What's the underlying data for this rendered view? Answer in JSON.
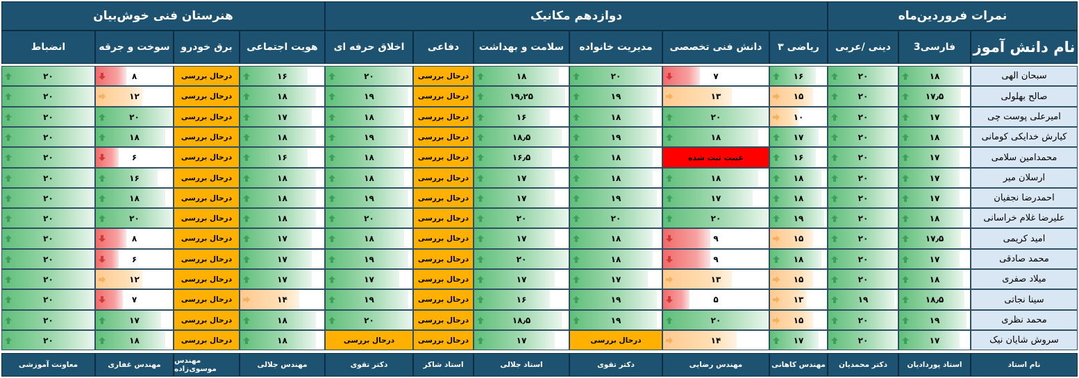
{
  "group_headers": {
    "g1": "نمرات فروردین‌ماه",
    "g2": "دوازدهم مکانیک",
    "g3": "هنرستان فنی خوش‌بیان"
  },
  "columns": [
    {
      "key": "name",
      "label": "نام دانش آموز"
    },
    {
      "key": "farsi",
      "label": "فارسی3"
    },
    {
      "key": "dini",
      "label": "دینی /عربی"
    },
    {
      "key": "riazi",
      "label": "ریاضی ۳"
    },
    {
      "key": "danesh",
      "label": "دانش فنی تخصصی"
    },
    {
      "key": "modiriat",
      "label": "مدیریت خانواده"
    },
    {
      "key": "salamat",
      "label": "سلامت و بهداشت"
    },
    {
      "key": "defaee",
      "label": "دفاعی"
    },
    {
      "key": "akhlagh",
      "label": "اخلاق حرفه ای"
    },
    {
      "key": "hoviat",
      "label": "هویت اجتماعی"
    },
    {
      "key": "bargh",
      "label": "برق خودرو"
    },
    {
      "key": "sukht",
      "label": "سوخت و جرقه"
    },
    {
      "key": "enzebat",
      "label": "انضباط"
    }
  ],
  "students": [
    {
      "name": "سبحان الهی",
      "farsi": "۱۸",
      "dini": "۲۰",
      "riazi": "۱۶",
      "danesh": "۷",
      "modiriat": "۲۰",
      "salamat": "۱۸",
      "defaee": "درحال بررسی",
      "akhlagh": "۲۰",
      "hoviat": "۱۶",
      "bargh": "درحال بررسی",
      "sukht": "۸",
      "enzebat": "۲۰"
    },
    {
      "name": "صالح بهلولی",
      "farsi": "۱۷٫۵",
      "dini": "۲۰",
      "riazi": "۱۵",
      "danesh": "۱۳",
      "modiriat": "۱۹",
      "salamat": "۱۹٫۲۵",
      "defaee": "درحال بررسی",
      "akhlagh": "۱۹",
      "hoviat": "۱۸",
      "bargh": "درحال بررسی",
      "sukht": "۱۲",
      "enzebat": "۲۰"
    },
    {
      "name": "امیرعلی پوست چی",
      "farsi": "۱۷",
      "dini": "۲۰",
      "riazi": "۱۰",
      "danesh": "۲۰",
      "modiriat": "۱۸",
      "salamat": "۱۶",
      "defaee": "درحال بررسی",
      "akhlagh": "۱۸",
      "hoviat": "۱۷",
      "bargh": "درحال بررسی",
      "sukht": "۲۰",
      "enzebat": "۲۰"
    },
    {
      "name": "کیارش خدایکی کومانی",
      "farsi": "۱۸",
      "dini": "۲۰",
      "riazi": "۱۷",
      "danesh": "۱۸",
      "modiriat": "۱۹",
      "salamat": "۱۸٫۵",
      "defaee": "درحال بررسی",
      "akhlagh": "۱۹",
      "hoviat": "۱۸",
      "bargh": "درحال بررسی",
      "sukht": "۱۸",
      "enzebat": "۲۰"
    },
    {
      "name": "محمدامین سلامی",
      "farsi": "۱۷",
      "dini": "۲۰",
      "riazi": "۱۶",
      "danesh": "غیبت ثبت شده",
      "modiriat": "۱۸",
      "salamat": "۱۶٫۵",
      "defaee": "درحال بررسی",
      "akhlagh": "۱۸",
      "hoviat": "۱۶",
      "bargh": "درحال بررسی",
      "sukht": "۶",
      "enzebat": "۲۰"
    },
    {
      "name": "ارسلان میر",
      "farsi": "۱۷",
      "dini": "۲۰",
      "riazi": "۱۸",
      "danesh": "۱۸",
      "modiriat": "۱۸",
      "salamat": "۱۷",
      "defaee": "درحال بررسی",
      "akhlagh": "۱۸",
      "hoviat": "۱۸",
      "bargh": "درحال بررسی",
      "sukht": "۱۶",
      "enzebat": "۲۰"
    },
    {
      "name": "احمدرضا نجفیان",
      "farsi": "۱۷",
      "dini": "۲۰",
      "riazi": "۱۸",
      "danesh": "۱۷",
      "modiriat": "۱۹",
      "salamat": "۱۷",
      "defaee": "درحال بررسی",
      "akhlagh": "۱۹",
      "hoviat": "۱۸",
      "bargh": "درحال بررسی",
      "sukht": "۱۸",
      "enzebat": "۲۰"
    },
    {
      "name": "علیرضا غلام خراسانی",
      "farsi": "۱۸",
      "dini": "۲۰",
      "riazi": "۱۹",
      "danesh": "۲۰",
      "modiriat": "۲۰",
      "salamat": "۲۰",
      "defaee": "درحال بررسی",
      "akhlagh": "۲۰",
      "hoviat": "۱۸",
      "bargh": "درحال بررسی",
      "sukht": "۲۰",
      "enzebat": "۲۰"
    },
    {
      "name": "امید کریمی",
      "farsi": "۱۷٫۵",
      "dini": "۲۰",
      "riazi": "۱۵",
      "danesh": "۹",
      "modiriat": "۱۸",
      "salamat": "۱۷",
      "defaee": "درحال بررسی",
      "akhlagh": "۱۸",
      "hoviat": "۱۷",
      "bargh": "درحال بررسی",
      "sukht": "۸",
      "enzebat": "۲۰"
    },
    {
      "name": "محمد صادقی",
      "farsi": "۱۷",
      "dini": "۲۰",
      "riazi": "۱۸",
      "danesh": "۹",
      "modiriat": "۱۸",
      "salamat": "۲۰",
      "defaee": "درحال بررسی",
      "akhlagh": "۱۹",
      "hoviat": "۱۷",
      "bargh": "درحال بررسی",
      "sukht": "۶",
      "enzebat": "۲۰"
    },
    {
      "name": "میلاد صفری",
      "farsi": "۱۸",
      "dini": "۲۰",
      "riazi": "۱۵",
      "danesh": "۱۳",
      "modiriat": "۱۷",
      "salamat": "۱۷",
      "defaee": "درحال بررسی",
      "akhlagh": "۱۷",
      "hoviat": "۱۷",
      "bargh": "درحال بررسی",
      "sukht": "۱۲",
      "enzebat": "۲۰"
    },
    {
      "name": "سینا نجاتی",
      "farsi": "۱۸٫۵",
      "dini": "۱۹",
      "riazi": "۱۳",
      "danesh": "۵",
      "modiriat": "۱۹",
      "salamat": "۱۶",
      "defaee": "درحال بررسی",
      "akhlagh": "۱۹",
      "hoviat": "۱۴",
      "bargh": "درحال بررسی",
      "sukht": "۷",
      "enzebat": "۲۰"
    },
    {
      "name": "محمد نظری",
      "farsi": "۱۹",
      "dini": "۲۰",
      "riazi": "۱۵",
      "danesh": "۲۰",
      "modiriat": "۱۹",
      "salamat": "۱۸٫۵",
      "defaee": "درحال بررسی",
      "akhlagh": "۲۰",
      "hoviat": "۱۸",
      "bargh": "درحال بررسی",
      "sukht": "۱۷",
      "enzebat": "۲۰"
    },
    {
      "name": "سروش شایان نیک",
      "farsi": "۱۷",
      "dini": "۲۰",
      "riazi": "۱۷",
      "danesh": "۱۴",
      "modiriat": "درحال بررسی",
      "salamat": "۱۷",
      "defaee": "درحال بررسی",
      "akhlagh": "درحال بررسی",
      "hoviat": "۱۸",
      "bargh": "درحال بررسی",
      "sukht": "۱۸",
      "enzebat": "۲۰"
    }
  ],
  "teachers": {
    "name": "نام استاد",
    "farsi": "استاد پوردادیان",
    "dini": "دکتر محمدیان",
    "riazi": "مهندس کاهانی",
    "danesh": "مهندس رضایی",
    "modiriat": "دکتر تقوی",
    "salamat": "استاد جلالی",
    "defaee": "استاد شاکر",
    "akhlagh": "دکتر تقوی",
    "hoviat": "مهندس جلالی",
    "bargh": "مهندس موسوی‌زاده",
    "sukht": "مهندس غفاری",
    "enzebat": "معاونت آموزشی"
  },
  "colors": {
    "header_bg": "#1d5370",
    "name_bg": "#d9e6f3",
    "pending_bg": "#ffb000",
    "absent_bg": "#ff0000",
    "green": "#5fbf79",
    "orange": "#ffc98f",
    "red": "#f06a6a"
  },
  "icons": {
    "up": "arrow-up-icon",
    "side": "arrow-right-icon",
    "down": "arrow-down-icon"
  }
}
